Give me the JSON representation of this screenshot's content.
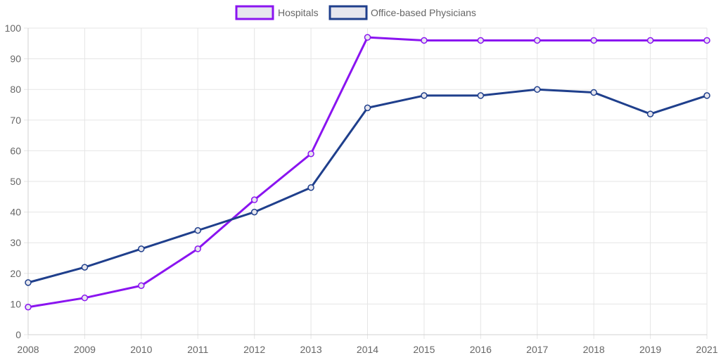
{
  "chart_data": {
    "type": "line",
    "x": [
      "2008",
      "2009",
      "2010",
      "2011",
      "2012",
      "2013",
      "2014",
      "2015",
      "2016",
      "2017",
      "2018",
      "2019",
      "2021"
    ],
    "ylim": [
      0,
      100
    ],
    "yticks": [
      0,
      10,
      20,
      30,
      40,
      50,
      60,
      70,
      80,
      90,
      100
    ],
    "grid": true,
    "legend_position": "top-center",
    "series": [
      {
        "name": "Hospitals",
        "color": "#8a14f0",
        "values": [
          9,
          12,
          16,
          28,
          44,
          59,
          97,
          96,
          96,
          96,
          96,
          96,
          96
        ]
      },
      {
        "name": "Office-based Physicians",
        "color": "#1f3f8c",
        "values": [
          17,
          22,
          28,
          34,
          40,
          48,
          74,
          78,
          78,
          80,
          79,
          72,
          78
        ]
      }
    ]
  }
}
